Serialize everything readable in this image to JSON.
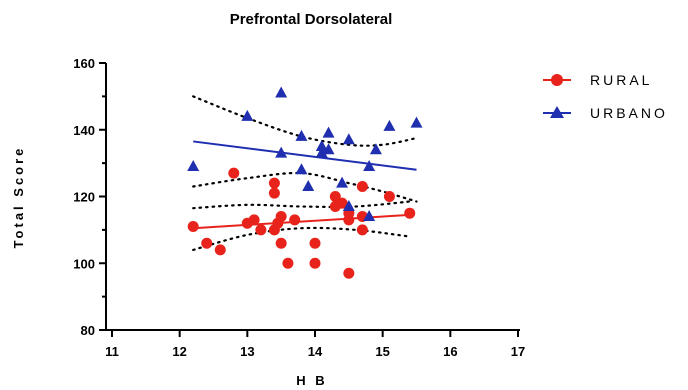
{
  "chart_data": {
    "type": "scatter",
    "title": "Prefrontal Dorsolateral",
    "xlabel": "H B",
    "ylabel": "Total Score",
    "xlim": [
      11,
      17
    ],
    "ylim": [
      80,
      160
    ],
    "x_ticks": [
      "11",
      "12",
      "13",
      "14",
      "15",
      "16",
      "17"
    ],
    "y_ticks": [
      "80",
      "100",
      "120",
      "140",
      "160"
    ],
    "grid": false,
    "legend_position": "top-right",
    "series": [
      {
        "name": "RURAL",
        "marker": "circle",
        "color": "#e8231b",
        "points": [
          [
            12.2,
            111
          ],
          [
            12.4,
            106
          ],
          [
            12.6,
            104
          ],
          [
            12.8,
            127
          ],
          [
            13.0,
            112
          ],
          [
            13.1,
            113
          ],
          [
            13.2,
            110
          ],
          [
            13.4,
            124
          ],
          [
            13.4,
            121
          ],
          [
            13.4,
            110
          ],
          [
            13.45,
            112
          ],
          [
            13.5,
            114
          ],
          [
            13.5,
            106
          ],
          [
            13.6,
            100
          ],
          [
            13.7,
            113
          ],
          [
            14.0,
            106
          ],
          [
            14.0,
            100
          ],
          [
            14.3,
            120
          ],
          [
            14.3,
            117
          ],
          [
            14.4,
            118
          ],
          [
            14.5,
            97
          ],
          [
            14.5,
            113
          ],
          [
            14.5,
            115
          ],
          [
            14.7,
            123
          ],
          [
            14.7,
            114
          ],
          [
            14.7,
            110
          ],
          [
            15.1,
            120
          ],
          [
            15.4,
            115
          ]
        ],
        "fit": {
          "x": [
            12.2,
            15.4
          ],
          "y": [
            110.5,
            114.5
          ]
        },
        "ci_upper": {
          "x": [
            12.2,
            13.0,
            13.8,
            14.6,
            15.4
          ],
          "y": [
            116.5,
            117.5,
            117.0,
            117.0,
            118.5
          ]
        },
        "ci_lower": {
          "x": [
            12.2,
            13.0,
            13.8,
            14.6,
            15.4
          ],
          "y": [
            104.0,
            108.5,
            110.5,
            110.0,
            108.0
          ]
        }
      },
      {
        "name": "URBANO",
        "marker": "triangle",
        "color": "#1f2fb0",
        "points": [
          [
            12.2,
            129
          ],
          [
            13.0,
            144
          ],
          [
            13.5,
            151
          ],
          [
            13.5,
            133
          ],
          [
            13.8,
            138
          ],
          [
            13.8,
            128
          ],
          [
            13.9,
            123
          ],
          [
            14.1,
            135
          ],
          [
            14.1,
            133
          ],
          [
            14.2,
            139
          ],
          [
            14.2,
            134
          ],
          [
            14.4,
            124
          ],
          [
            14.5,
            117
          ],
          [
            14.5,
            137
          ],
          [
            14.8,
            114
          ],
          [
            14.8,
            129
          ],
          [
            14.9,
            134
          ],
          [
            15.1,
            141
          ],
          [
            15.5,
            142
          ]
        ],
        "fit": {
          "x": [
            12.2,
            15.5
          ],
          "y": [
            136.5,
            128.0
          ]
        },
        "ci_upper": {
          "x": [
            12.2,
            13.0,
            13.8,
            14.5,
            15.0,
            15.5
          ],
          "y": [
            150.0,
            143.5,
            138.0,
            135.5,
            135.5,
            137.5
          ]
        },
        "ci_lower": {
          "x": [
            12.2,
            13.0,
            13.8,
            14.5,
            15.0,
            15.5
          ],
          "y": [
            123.0,
            125.5,
            127.0,
            124.0,
            121.5,
            118.5
          ]
        }
      }
    ]
  }
}
